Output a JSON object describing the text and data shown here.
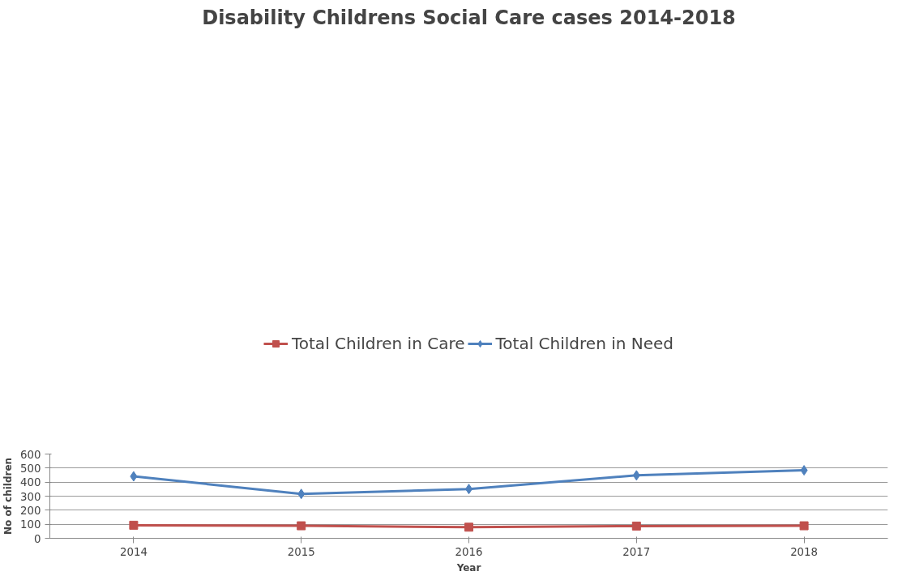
{
  "chart_data": {
    "type": "line",
    "title": "Disability Childrens Social Care cases 2014-2018",
    "xlabel": "Year",
    "ylabel": "No of children",
    "categories": [
      "2014",
      "2015",
      "2016",
      "2017",
      "2018"
    ],
    "series": [
      {
        "name": "Total Children in Care",
        "color": "#c0504d",
        "marker": "square",
        "values": [
          93,
          89,
          79,
          87,
          89
        ]
      },
      {
        "name": "Total Children in Need",
        "color": "#4f81bd",
        "marker": "diamond",
        "values": [
          441,
          316,
          351,
          448,
          484
        ]
      }
    ],
    "ylim": [
      0,
      600
    ],
    "yticks": [
      0,
      100,
      200,
      300,
      400,
      500,
      600
    ],
    "grid": "y",
    "legend": "top"
  }
}
